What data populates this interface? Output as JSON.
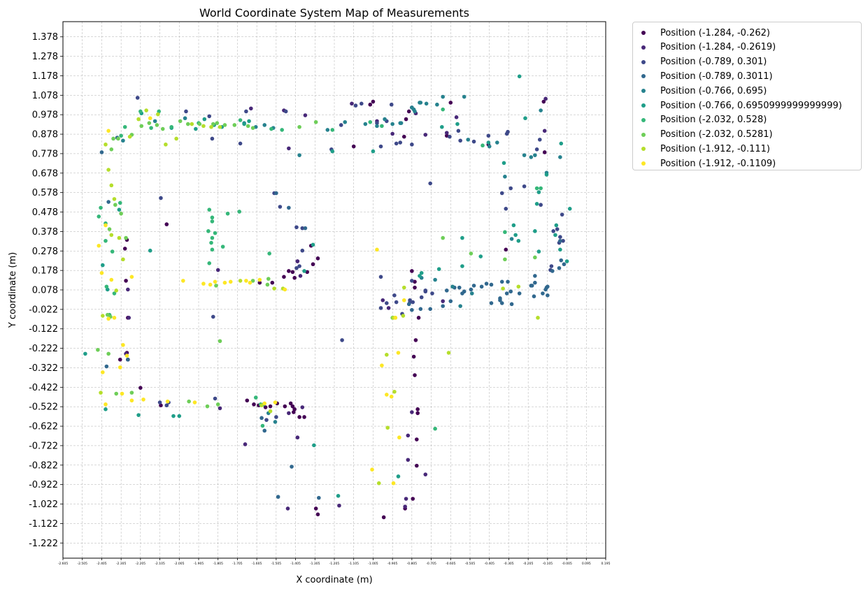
{
  "chart_data": {
    "type": "scatter",
    "title": "World Coordinate System Map of Measurements",
    "xlabel": "X coordinate (m)",
    "ylabel": "Y coordinate (m)",
    "xlim": [
      -2.605,
      0.195
    ],
    "ylim": [
      -1.3,
      1.456
    ],
    "grid": true,
    "legend_position": "outside top-right",
    "x_ticks": [
      "-2.605",
      "-2.505",
      "-2.405",
      "-2.305",
      "-2.205",
      "-2.105",
      "-2.005",
      "-1.905",
      "-1.805",
      "-1.705",
      "-1.605",
      "-1.505",
      "-1.405",
      "-1.305",
      "-1.205",
      "-1.105",
      "-1.005",
      "-0.905",
      "-0.805",
      "-0.705",
      "-0.605",
      "-0.505",
      "-0.405",
      "-0.305",
      "-0.205",
      "-0.105",
      "-0.005",
      "0.095",
      "0.195"
    ],
    "y_ticks": [
      "1.378",
      "1.278",
      "1.178",
      "1.078",
      "0.978",
      "0.878",
      "0.778",
      "0.678",
      "0.578",
      "0.478",
      "0.378",
      "0.278",
      "0.178",
      "0.078",
      "-0.022",
      "-0.122",
      "-0.222",
      "-0.322",
      "-0.422",
      "-0.522",
      "-0.622",
      "-0.722",
      "-0.822",
      "-0.922",
      "-1.022",
      "-1.122",
      "-1.222"
    ],
    "series": [
      {
        "name": "Position (-1.284, -0.262)",
        "color": "#440154",
        "x": [
          -2.275,
          -2.285,
          -2.28,
          -2.27,
          -2.275,
          -2.31,
          -2.27,
          -2.205,
          -2.1,
          -2.07,
          -1.655,
          -1.62,
          -1.595,
          -1.56,
          -1.535,
          -1.5,
          -1.46,
          -1.43,
          -1.42,
          -1.415,
          -1.395,
          -1.42,
          -1.345,
          -1.315,
          -1.29,
          -1.44,
          -1.41,
          -1.465,
          -1.525,
          -1.59,
          -1.41,
          -1.385,
          -1.36,
          -1.3,
          -1.29,
          -1.325,
          -1.105,
          -1.02,
          -1.005,
          -0.95,
          -0.84,
          -0.8,
          -0.78,
          -0.775,
          -0.775,
          -0.78,
          -0.77,
          -0.785,
          -0.795,
          -0.79,
          -0.79,
          -0.79,
          -0.805,
          -0.835,
          -0.845,
          -0.605,
          -0.625,
          -0.41,
          -0.32,
          -0.12,
          -0.125,
          -0.82
        ],
        "y": [
          0.335,
          0.29,
          0.125,
          -0.065,
          -0.245,
          -0.28,
          -0.28,
          -0.425,
          -0.515,
          0.415,
          -0.49,
          -0.51,
          -0.515,
          -0.525,
          -0.52,
          -0.505,
          -0.52,
          -0.505,
          -0.52,
          -0.55,
          0.225,
          0.17,
          0.17,
          0.21,
          0.24,
          0.175,
          0.14,
          0.145,
          0.115,
          0.115,
          -0.535,
          -0.575,
          -0.575,
          -1.045,
          -1.075,
          0.305,
          0.815,
          1.03,
          1.045,
          -1.09,
          -1.045,
          -0.995,
          -0.69,
          -0.555,
          -0.535,
          -0.825,
          -0.065,
          -0.18,
          -0.265,
          -0.36,
          0.09,
          0.12,
          0.175,
          0.955,
          0.865,
          1.04,
          0.87,
          0.825,
          0.285,
          0.785,
          1.045,
          0.995
        ]
      },
      {
        "name": "Position (-1.284, -0.2619)",
        "color": "#482878",
        "x": [
          -2.28,
          -2.27,
          -2.27,
          -2.265,
          -1.805,
          -1.795,
          -1.665,
          -1.635,
          -1.465,
          -1.44,
          -1.395,
          -1.38,
          -1.37,
          -1.355,
          -1.44,
          -1.445,
          -1.395,
          -1.115,
          -1.18,
          -0.985,
          -0.905,
          -0.825,
          -0.825,
          -0.735,
          -0.805,
          -0.575,
          -0.625,
          -0.735,
          -0.785,
          -0.805,
          -0.835,
          -0.84,
          -0.12,
          -0.115,
          -0.955,
          -0.645,
          -0.925
        ],
        "y": [
          -0.25,
          -0.28,
          0.08,
          -0.065,
          0.18,
          -0.53,
          -0.715,
          1.01,
          1.0,
          0.805,
          0.225,
          0.15,
          -0.525,
          0.975,
          -0.555,
          -1.045,
          -0.68,
          1.035,
          -1.03,
          0.945,
          0.88,
          -0.67,
          -0.795,
          -0.87,
          -0.55,
          0.965,
          0.885,
          0.875,
          0.985,
          1.015,
          -0.995,
          -1.035,
          0.895,
          1.06,
          0.025,
          0.02,
          -0.015
        ]
      },
      {
        "name": "Position (-0.789, 0.301)",
        "color": "#3e4989",
        "x": [
          -2.22,
          -2.1,
          -2.105,
          -2.07,
          -1.97,
          -1.82,
          -1.83,
          -1.69,
          -1.835,
          -1.455,
          -1.515,
          -1.4,
          -1.37,
          -1.37,
          -1.385,
          -1.4,
          -1.22,
          -1.17,
          -1.095,
          -1.065,
          -0.985,
          -0.965,
          -0.935,
          -0.91,
          -0.885,
          -0.865,
          -0.805,
          -0.71,
          -0.61,
          -0.565,
          -0.555,
          -0.485,
          -0.41,
          -0.34,
          -0.32,
          -0.315,
          -0.31,
          -0.295,
          -0.225,
          -0.145,
          -0.16,
          -0.14,
          -0.075,
          -0.055,
          -0.03,
          -0.025,
          -0.04,
          -0.045,
          -0.09,
          -0.085,
          -0.815,
          -0.855,
          -0.7,
          -0.735,
          -0.755,
          -0.965,
          -1.165,
          -0.805,
          -0.815,
          -0.885,
          -0.935,
          -0.965,
          -0.895,
          -0.8,
          -1.66,
          -1.555,
          -1.485,
          -1.505,
          -0.735,
          -2.06,
          -1.85
        ],
        "y": [
          1.065,
          0.55,
          -0.5,
          -0.515,
          0.995,
          -0.48,
          -0.06,
          0.83,
          0.855,
          0.995,
          0.575,
          0.4,
          0.395,
          0.28,
          0.2,
          0.19,
          0.8,
          0.925,
          1.025,
          1.035,
          0.935,
          0.815,
          0.945,
          1.03,
          0.83,
          0.835,
          0.825,
          0.625,
          0.865,
          0.895,
          0.845,
          0.84,
          0.87,
          0.575,
          0.495,
          0.88,
          0.89,
          0.6,
          0.61,
          0.85,
          0.8,
          0.515,
          0.38,
          0.39,
          0.465,
          0.33,
          0.35,
          0.32,
          0.18,
          0.2,
          0.015,
          -0.045,
          0.06,
          0.07,
          0.04,
          0.145,
          -0.18,
          0.125,
          0.025,
          0.015,
          0.01,
          -0.015,
          0.05,
          0.015,
          0.995,
          -0.59,
          0.505,
          -0.575,
          0.075,
          -0.5,
          0.97
        ]
      },
      {
        "name": "Position (-0.789, 0.3011)",
        "color": "#31688e",
        "x": [
          -2.405,
          -2.37,
          -2.38,
          -2.325,
          -2.27,
          -1.425,
          -1.285,
          -1.505,
          -1.495,
          -1.58,
          -1.565,
          -1.44,
          -1.355,
          -0.56,
          -0.545,
          -0.535,
          -0.5,
          -0.445,
          -0.485,
          -0.42,
          -0.395,
          -0.34,
          -0.31,
          -0.17,
          -0.19,
          -0.185,
          -0.13,
          -0.105,
          -0.105,
          -0.04,
          -0.035,
          -0.02,
          -0.045,
          -0.08,
          -0.11,
          -0.115,
          -0.175,
          -0.25,
          -0.29,
          -0.35,
          -0.35,
          -0.395,
          -0.17,
          -0.295,
          -0.315,
          -0.34,
          -0.82,
          -0.805,
          -0.76,
          -0.71,
          -0.645,
          -0.605,
          -0.585,
          -0.625
        ],
        "y": [
          0.785,
          0.53,
          -0.315,
          0.86,
          -0.28,
          -0.83,
          -0.99,
          0.575,
          -0.985,
          -0.58,
          -0.645,
          0.5,
          0.395,
          0.09,
          0.06,
          0.07,
          0.08,
          0.095,
          0.1,
          0.11,
          0.105,
          0.12,
          0.12,
          0.15,
          0.1,
          0.1,
          0.06,
          0.05,
          0.095,
          0.33,
          0.23,
          0.21,
          0.19,
          0.175,
          0.09,
          0.08,
          0.045,
          0.06,
          0.005,
          0.035,
          0.025,
          0.01,
          0.115,
          0.07,
          0.06,
          0.01,
          0.005,
          -0.025,
          -0.02,
          -0.02,
          -0.005,
          0.02,
          0.09,
          0.075
        ]
      },
      {
        "name": "Position (-0.766, 0.695)",
        "color": "#26828e",
        "x": [
          -2.295,
          -2.13,
          -1.975,
          -1.61,
          -1.52,
          -1.565,
          -1.24,
          -1.15,
          -1.045,
          -0.985,
          -0.905,
          -0.86,
          -0.805,
          -0.76,
          -0.675,
          -0.645,
          -0.535,
          -0.515,
          -0.365,
          -0.29,
          -0.17,
          -0.14,
          -0.04,
          -0.325,
          -0.405,
          -0.225,
          -0.19,
          -0.11,
          -1.67,
          -1.385,
          -1.545,
          -1.51,
          -0.685,
          -0.755,
          -0.595,
          -0.555,
          -0.795,
          -0.73,
          -0.765,
          -0.79,
          -0.945,
          -0.865,
          -0.495
        ],
        "y": [
          0.845,
          0.945,
          0.96,
          0.915,
          0.91,
          0.925,
          0.9,
          0.94,
          0.93,
          0.92,
          0.93,
          0.935,
          1.015,
          1.04,
          1.03,
          1.07,
          1.07,
          0.85,
          0.835,
          0.34,
          0.77,
          1.0,
          0.76,
          0.66,
          0.815,
          0.77,
          0.76,
          0.68,
          0.935,
          0.77,
          -0.555,
          -0.6,
          0.13,
          0.14,
          0.095,
          -0.005,
          1.005,
          1.035,
          1.04,
          0.995,
          0.955,
          0.935,
          0.06
        ]
      },
      {
        "name": "Position (-0.766, 0.6950999999999999)",
        "color": "#1f9e89",
        "x": [
          -2.4,
          -2.375,
          -2.315,
          -2.2,
          -2.005,
          -2.045,
          -1.875,
          -1.785,
          -1.67,
          -1.645,
          -1.215,
          -1.005,
          -0.65,
          -0.545,
          -0.41,
          -0.33,
          -0.28,
          -0.27,
          -0.25,
          -0.22,
          -0.17,
          -0.16,
          -0.11,
          -0.06,
          -0.035,
          -0.04,
          0.01,
          -0.005,
          -0.065,
          -0.15,
          -0.15,
          -0.255,
          -0.45,
          -0.545,
          -0.57,
          -0.665,
          -0.765,
          -0.755,
          -0.875,
          -1.185,
          -1.31,
          -1.315,
          -1.36,
          -2.155,
          -1.57,
          -1.92,
          -1.825,
          -2.49,
          -2.385,
          -2.215,
          -2.035
        ],
        "y": [
          0.205,
          0.08,
          0.49,
          0.985,
          -0.57,
          0.91,
          0.955,
          0.915,
          0.93,
          0.945,
          0.79,
          0.79,
          0.915,
          0.345,
          0.835,
          0.73,
          0.41,
          0.36,
          1.175,
          0.96,
          0.38,
          0.52,
          0.67,
          0.41,
          0.83,
          0.285,
          0.495,
          0.225,
          0.36,
          0.58,
          0.275,
          0.33,
          0.25,
          0.2,
          0.93,
          0.185,
          0.15,
          0.165,
          -0.88,
          -0.98,
          -0.72,
          0.31,
          0.175,
          0.28,
          -0.51,
          0.905,
          0.925,
          -0.25,
          -0.535,
          -0.565,
          -0.57
        ]
      },
      {
        "name": "Position (-2.032, 0.528)",
        "color": "#35b779",
        "x": [
          -2.42,
          -2.41,
          -2.385,
          -2.38,
          -2.365,
          -2.385,
          -2.35,
          -2.34,
          -2.305,
          -2.31,
          -2.285,
          -2.205,
          -2.15,
          -2.11,
          -2.045,
          -1.905,
          -1.855,
          -1.84,
          -1.85,
          -1.835,
          -1.835,
          -1.78,
          -1.755,
          -1.695,
          -1.69,
          -1.61,
          -1.585,
          -1.53,
          -1.475,
          -1.215,
          -1.02,
          -0.96,
          -0.685,
          -0.645,
          -0.44,
          -0.325,
          -0.16,
          -0.14,
          -1.835,
          -1.835,
          -1.82,
          -1.54,
          -1.575,
          -1.85
        ],
        "y": [
          0.455,
          0.5,
          0.42,
          0.095,
          -0.05,
          0.33,
          0.275,
          0.06,
          0.87,
          0.525,
          0.915,
          0.995,
          0.91,
          0.995,
          0.915,
          0.935,
          0.38,
          0.32,
          0.49,
          0.43,
          0.345,
          0.3,
          0.47,
          0.48,
          0.95,
          -0.475,
          -0.51,
          0.905,
          0.9,
          0.9,
          0.94,
          0.92,
          -0.635,
          1.005,
          0.82,
          0.375,
          0.6,
          0.6,
          0.45,
          0.285,
          0.37,
          0.265,
          -0.62,
          0.215
        ]
      },
      {
        "name": "Position (-2.032, 0.5281)",
        "color": "#6ece58",
        "x": [
          -2.425,
          -2.375,
          -2.365,
          -2.355,
          -2.345,
          -2.335,
          -2.32,
          -2.305,
          -2.28,
          -2.25,
          -2.2,
          -2.16,
          -2.12,
          -2.09,
          -2.0,
          -1.96,
          -1.9,
          -1.83,
          -1.81,
          -1.77,
          -1.72,
          -1.65,
          -1.625,
          -1.385,
          -1.3,
          -0.905,
          -0.645,
          -0.5,
          -0.325,
          -0.17,
          -1.795,
          -1.805,
          -1.86,
          -1.815,
          -1.55,
          -1.545,
          -1.625,
          -1.955,
          -2.25,
          -2.33,
          -2.36,
          -2.37
        ],
        "y": [
          -0.23,
          -0.05,
          0.39,
          0.8,
          0.855,
          0.515,
          0.855,
          0.47,
          0.345,
          0.875,
          0.92,
          0.935,
          0.925,
          0.905,
          0.945,
          0.93,
          0.93,
          0.93,
          0.935,
          0.925,
          0.925,
          0.92,
          0.91,
          0.915,
          0.94,
          -0.065,
          0.345,
          0.265,
          0.235,
          0.245,
          -0.185,
          -0.51,
          -0.52,
          0.1,
          0.105,
          0.135,
          0.125,
          -0.495,
          -0.45,
          -0.455,
          -0.06,
          -0.25
        ]
      },
      {
        "name": "Position (-1.912, -0.111)",
        "color": "#b5de2b",
        "x": [
          -2.41,
          -2.4,
          -2.385,
          -2.37,
          -2.355,
          -2.355,
          -2.34,
          -2.33,
          -2.315,
          -2.295,
          -2.26,
          -2.215,
          -2.175,
          -2.115,
          -2.075,
          -2.02,
          -1.94,
          -1.88,
          -1.84,
          -1.795,
          -1.69,
          -1.58,
          -1.535,
          -1.515,
          -1.47,
          -0.975,
          -0.93,
          -0.9,
          -0.935,
          -0.895,
          -0.85,
          -0.89,
          -0.845,
          -0.155,
          -0.335,
          -0.255,
          -0.615
        ],
        "y": [
          -0.45,
          -0.055,
          0.825,
          0.695,
          0.36,
          0.615,
          0.545,
          0.075,
          0.345,
          0.235,
          0.865,
          0.955,
          1.0,
          0.98,
          0.825,
          0.855,
          0.93,
          0.92,
          0.915,
          0.915,
          0.125,
          -0.515,
          -0.545,
          0.085,
          0.085,
          -0.915,
          -0.63,
          -0.065,
          -0.255,
          -0.445,
          -0.055,
          -0.065,
          0.09,
          -0.065,
          0.085,
          0.095,
          -0.245
        ]
      },
      {
        "name": "Position (-1.912, -0.1109)",
        "color": "#fde725",
        "x": [
          -2.42,
          -2.405,
          -2.385,
          -2.37,
          -2.355,
          -2.34,
          -2.31,
          -2.295,
          -2.275,
          -2.25,
          -2.19,
          -2.155,
          -2.065,
          -1.985,
          -1.925,
          -1.88,
          -1.845,
          -1.82,
          -1.77,
          -1.74,
          -1.66,
          -1.64,
          -1.59,
          -1.565,
          -1.51,
          -1.46,
          -1.01,
          -0.985,
          -0.96,
          -0.935,
          -0.91,
          -0.89,
          -0.875,
          -0.87,
          -0.845,
          -2.25,
          -2.3,
          -2.4,
          -2.385,
          -2.37,
          -0.9
        ],
        "y": [
          0.305,
          0.165,
          0.41,
          0.895,
          0.13,
          -0.065,
          -0.32,
          -0.205,
          -0.26,
          0.145,
          -0.485,
          0.96,
          -0.495,
          0.125,
          -0.5,
          0.11,
          0.105,
          0.12,
          0.115,
          0.12,
          0.125,
          0.115,
          0.13,
          -0.505,
          -0.5,
          0.08,
          -0.845,
          0.285,
          -0.31,
          -0.46,
          -0.47,
          -0.065,
          -0.245,
          -0.68,
          0.025,
          -0.49,
          -0.455,
          -0.345,
          -0.51,
          -0.07,
          -0.915
        ]
      }
    ]
  }
}
